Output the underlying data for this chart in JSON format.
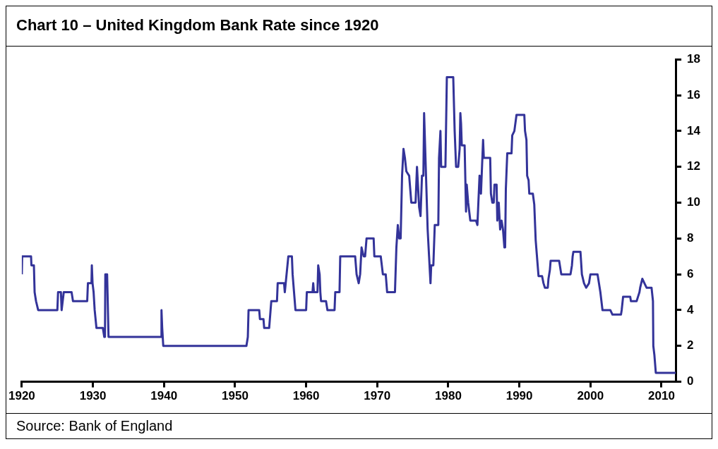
{
  "chart_data": {
    "type": "line",
    "title": "Chart 10 – United Kingdom Bank Rate since 1920",
    "annotations": [
      "Source:  Bank of England"
    ],
    "grid": false,
    "legend": false,
    "marker": "none",
    "line_style": "solid",
    "xlim": [
      1920,
      2012
    ],
    "xticks": [
      1920,
      1930,
      1940,
      1950,
      1960,
      1970,
      1980,
      1990,
      2000,
      2010
    ],
    "ylim": [
      0,
      18
    ],
    "yticks": [
      0,
      2,
      4,
      6,
      8,
      10,
      12,
      14,
      16,
      18
    ],
    "series": [
      {
        "color": "#333399",
        "x": [
          1920.0,
          1920.05,
          1921.3,
          1921.35,
          1921.7,
          1921.8,
          1922.0,
          1922.3,
          1925.0,
          1925.1,
          1925.5,
          1925.6,
          1925.9,
          1927.0,
          1927.2,
          1929.2,
          1929.3,
          1929.8,
          1929.85,
          1929.95,
          1930.1,
          1930.25,
          1930.5,
          1931.4,
          1931.6,
          1931.7,
          1931.75,
          1932.0,
          1932.2,
          1939.6,
          1939.65,
          1939.75,
          1939.9,
          1951.6,
          1951.8,
          1951.9,
          1953.4,
          1953.5,
          1954.0,
          1954.1,
          1954.8,
          1955.0,
          1955.1,
          1955.9,
          1956.0,
          1956.9,
          1957.0,
          1957.5,
          1958.0,
          1958.1,
          1958.3,
          1958.5,
          1960.0,
          1960.1,
          1960.9,
          1961.0,
          1961.1,
          1961.6,
          1961.7,
          1961.9,
          1962.0,
          1962.1,
          1962.8,
          1963.0,
          1964.0,
          1964.1,
          1964.7,
          1964.8,
          1966.9,
          1967.1,
          1967.4,
          1967.6,
          1967.8,
          1968.1,
          1968.3,
          1968.5,
          1969.5,
          1969.6,
          1970.5,
          1970.8,
          1971.2,
          1971.4,
          1972.5,
          1972.7,
          1972.9,
          1973.1,
          1973.3,
          1973.5,
          1973.7,
          1973.9,
          1974.1,
          1974.5,
          1974.8,
          1975.4,
          1975.6,
          1975.9,
          1976.1,
          1976.3,
          1976.5,
          1976.6,
          1977.1,
          1977.3,
          1977.5,
          1977.6,
          1977.9,
          1978.1,
          1978.6,
          1978.7,
          1978.9,
          1979.0,
          1979.6,
          1979.8,
          1980.7,
          1980.9,
          1981.1,
          1981.4,
          1981.6,
          1981.7,
          1981.8,
          1981.9,
          1982.3,
          1982.5,
          1982.6,
          1982.8,
          1983.1,
          1983.9,
          1984.1,
          1984.4,
          1984.6,
          1984.9,
          1985.0,
          1985.9,
          1986.0,
          1986.2,
          1986.4,
          1986.5,
          1986.8,
          1986.9,
          1987.1,
          1987.3,
          1987.5,
          1987.7,
          1987.9,
          1988.0,
          1988.1,
          1988.3,
          1988.9,
          1989.0,
          1989.3,
          1989.6,
          1990.7,
          1990.8,
          1991.0,
          1991.1,
          1991.3,
          1991.4,
          1991.9,
          1992.1,
          1992.3,
          1992.7,
          1993.2,
          1993.4,
          1993.6,
          1994.0,
          1994.1,
          1994.3,
          1994.4,
          1995.6,
          1995.9,
          1997.2,
          1997.4,
          1997.5,
          1997.6,
          1998.6,
          1998.8,
          1999.1,
          1999.4,
          1999.8,
          2000.0,
          2001.0,
          2001.2,
          2001.4,
          2001.7,
          2002.8,
          2003.1,
          2004.3,
          2004.4,
          2004.6,
          2005.6,
          2005.7,
          2006.5,
          2006.7,
          2006.9,
          2007.0,
          2007.3,
          2007.6,
          2007.9,
          2008.6,
          2008.8,
          2008.85,
          2009.0,
          2009.2,
          2012.0
        ],
        "values": [
          6,
          7,
          7,
          6.5,
          6.5,
          5,
          4.5,
          4,
          4,
          5,
          5,
          4,
          5,
          5,
          4.5,
          4.5,
          5.5,
          5.5,
          6.5,
          5.5,
          5,
          4,
          3,
          3,
          2.5,
          2.5,
          6,
          6,
          2.5,
          2.5,
          4,
          3,
          2,
          2,
          2.5,
          4,
          4,
          3.5,
          3.5,
          3,
          3,
          4,
          4.5,
          4.5,
          5.5,
          5.5,
          5,
          7,
          7,
          6,
          5,
          4,
          4,
          5,
          5,
          5.5,
          5,
          5,
          6.5,
          6,
          5,
          4.5,
          4.5,
          4,
          4,
          5,
          5,
          7,
          7,
          6,
          5.5,
          6,
          7.5,
          7,
          7,
          8,
          8,
          7,
          7,
          6,
          6,
          5,
          5,
          7.5,
          8.75,
          8,
          8,
          11.5,
          13,
          12.5,
          11.75,
          11.5,
          10,
          10,
          12,
          9.75,
          9.25,
          11.5,
          11.5,
          15,
          8.5,
          7,
          5.5,
          6.5,
          6.5,
          8.75,
          8.75,
          12.5,
          14,
          12,
          12,
          17,
          17,
          14,
          12,
          12,
          13,
          15,
          14.4,
          13.2,
          13.2,
          9.5,
          11,
          10,
          9,
          9,
          8.75,
          11.5,
          10.5,
          13.5,
          12.5,
          12.5,
          10.5,
          10,
          10,
          11,
          11,
          9,
          10,
          8.5,
          9,
          8.5,
          7.5,
          7.5,
          10.75,
          12.75,
          12.75,
          13.75,
          14,
          14.9,
          14.9,
          14,
          13.5,
          11.5,
          11.25,
          10.5,
          10.5,
          9.9,
          7.9,
          5.9,
          5.9,
          5.5,
          5.25,
          5.25,
          5.75,
          6.25,
          6.75,
          6.75,
          6,
          6,
          6.5,
          7,
          7.25,
          7.25,
          6,
          5.5,
          5.25,
          5.5,
          6,
          6,
          5.5,
          5,
          4,
          4,
          3.75,
          3.75,
          4,
          4.75,
          4.75,
          4.5,
          4.5,
          4.75,
          5,
          5.25,
          5.75,
          5.5,
          5.25,
          5.25,
          4.5,
          2,
          1.5,
          0.5,
          0.5
        ]
      }
    ]
  }
}
